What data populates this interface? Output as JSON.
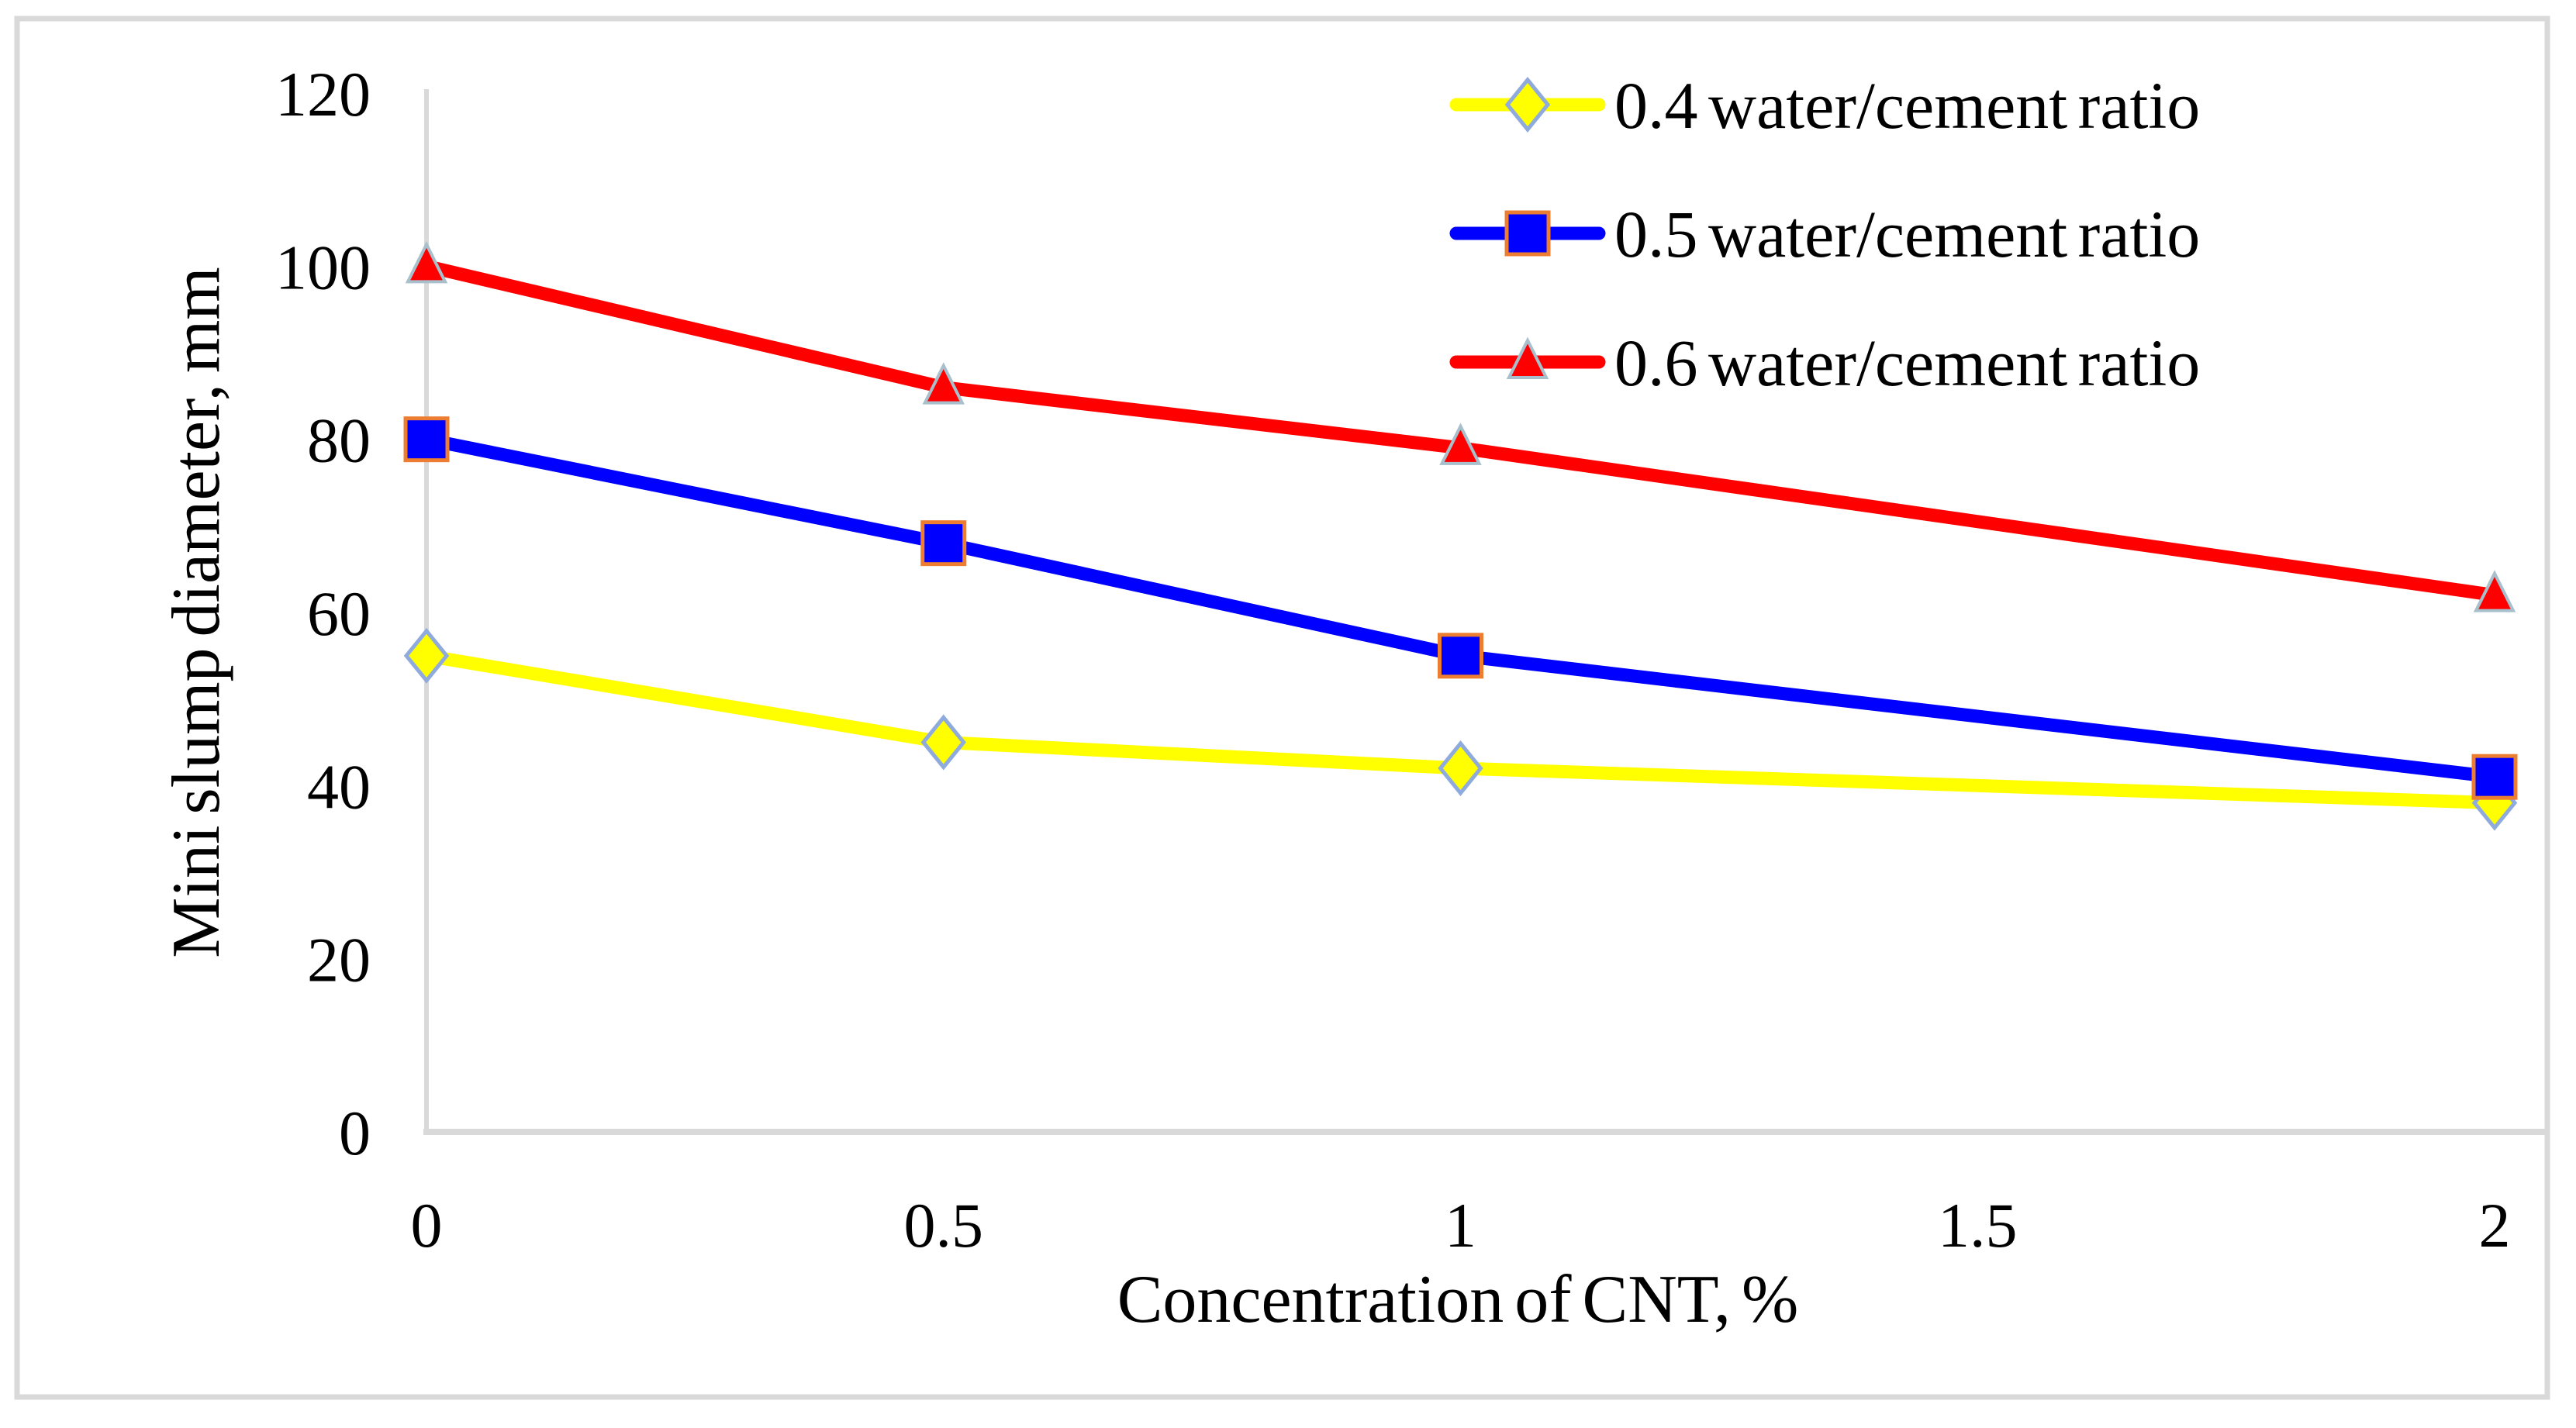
{
  "figure": {
    "background": "#FFFFFF",
    "border_color": "#D9D9D9"
  },
  "chart_data": {
    "type": "line",
    "title": "",
    "xlabel": "Concentration of CNT, %",
    "ylabel": "Mini slump diameter, mm",
    "xlim": [
      0,
      2.05
    ],
    "ylim": [
      0,
      120
    ],
    "x_ticks": [
      0,
      0.5,
      1,
      1.5,
      2
    ],
    "x_tick_labels": [
      "0",
      "0.5",
      "1",
      "1.5",
      "2"
    ],
    "y_ticks": [
      0,
      20,
      40,
      60,
      80,
      100,
      120
    ],
    "y_tick_labels": [
      "0",
      "20",
      "40",
      "60",
      "80",
      "100",
      "120"
    ],
    "grid": false,
    "legend_position": "top-right",
    "axis_color": "#D9D9D9",
    "text_color": "#000000",
    "series": [
      {
        "name": "0.4 water/cement ratio",
        "color": "#FFFF00",
        "marker": "diamond",
        "marker_fill": "#FFFF00",
        "marker_outline": "#8FAADC",
        "x": [
          0,
          0.5,
          1,
          2
        ],
        "values": [
          55,
          45,
          42,
          38
        ]
      },
      {
        "name": "0.5 water/cement ratio",
        "color": "#0000FF",
        "marker": "square",
        "marker_fill": "#0000FF",
        "marker_outline": "#ED7D31",
        "x": [
          0,
          0.5,
          1,
          2
        ],
        "values": [
          80,
          68,
          55,
          41
        ]
      },
      {
        "name": "0.6 water/cement ratio",
        "color": "#FF0000",
        "marker": "triangle",
        "marker_fill": "#FF0000",
        "marker_outline": "#A8BFCC",
        "x": [
          0,
          0.5,
          1,
          2
        ],
        "values": [
          100,
          86,
          79,
          62
        ]
      }
    ]
  }
}
